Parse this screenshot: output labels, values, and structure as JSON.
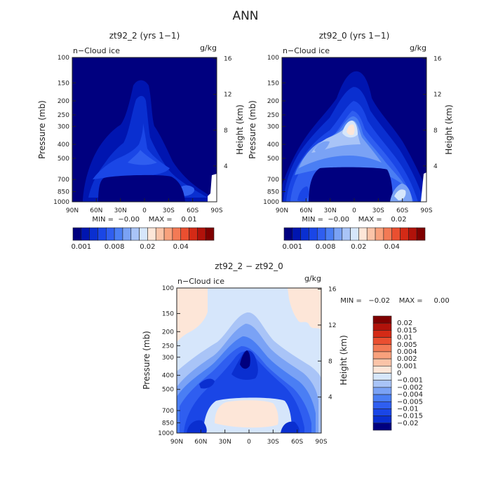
{
  "figure": {
    "title": "ANN"
  },
  "chart_data": [
    {
      "type": "heatmap",
      "title": "zt92_2 (yrs 1−1)",
      "field_label": "n−Cloud ice",
      "units": "g/kg",
      "ylabel_left": "Pressure (mb)",
      "ylabel_right": "Height (km)",
      "x_ticks": [
        "90N",
        "60N",
        "30N",
        "0",
        "30S",
        "60S",
        "90S"
      ],
      "y_ticks_pressure": [
        "100",
        "150",
        "200",
        "250",
        "300",
        "400",
        "500",
        "700",
        "850",
        "1000"
      ],
      "y_ticks_height": [
        "16",
        "12",
        "8",
        "4"
      ],
      "min_max_text": "MIN =  −0.00    MAX =    0.01",
      "colorbar": {
        "orientation": "horizontal",
        "labels": [
          "0.001",
          "0.008",
          "0.02",
          "0.04"
        ],
        "colors": [
          "#00007f",
          "#0015b0",
          "#0a2fd0",
          "#1a46e6",
          "#2f5ef0",
          "#4a7ef4",
          "#7aa2f5",
          "#a9c4f7",
          "#d6e6fb",
          "#fde6d8",
          "#fbc4a8",
          "#f8a17c",
          "#f37a55",
          "#ea4f30",
          "#d42a16",
          "#b1120a",
          "#7f0000"
        ]
      },
      "grid": false
    },
    {
      "type": "heatmap",
      "title": "zt92_0 (yrs 1−1)",
      "field_label": "n−Cloud ice",
      "units": "g/kg",
      "ylabel_left": "Pressure (mb)",
      "ylabel_right": "Height (km)",
      "x_ticks": [
        "90N",
        "60N",
        "30N",
        "0",
        "30S",
        "60S",
        "90S"
      ],
      "y_ticks_pressure": [
        "100",
        "150",
        "200",
        "250",
        "300",
        "400",
        "500",
        "700",
        "850",
        "1000"
      ],
      "y_ticks_height": [
        "16",
        "12",
        "8",
        "4"
      ],
      "min_max_text": "MIN =  −0.00    MAX =    0.02",
      "colorbar": {
        "orientation": "horizontal",
        "labels": [
          "0.001",
          "0.008",
          "0.02",
          "0.04"
        ],
        "colors": [
          "#00007f",
          "#0015b0",
          "#0a2fd0",
          "#1a46e6",
          "#2f5ef0",
          "#4a7ef4",
          "#7aa2f5",
          "#a9c4f7",
          "#d6e6fb",
          "#fde6d8",
          "#fbc4a8",
          "#f8a17c",
          "#f37a55",
          "#ea4f30",
          "#d42a16",
          "#b1120a",
          "#7f0000"
        ]
      },
      "grid": false
    },
    {
      "type": "heatmap",
      "title": "zt92_2 − zt92_0",
      "field_label": "n−Cloud ice",
      "units": "g/kg",
      "ylabel_left": "Pressure (mb)",
      "ylabel_right": "Height (km)",
      "x_ticks": [
        "90N",
        "60N",
        "30N",
        "0",
        "30S",
        "60S",
        "90S"
      ],
      "y_ticks_pressure": [
        "100",
        "150",
        "200",
        "250",
        "300",
        "400",
        "500",
        "700",
        "850",
        "1000"
      ],
      "y_ticks_height": [
        "16",
        "12",
        "8",
        "4"
      ],
      "min_max_text": "MIN =   −0.02    MAX =     0.00",
      "colorbar": {
        "orientation": "vertical",
        "labels": [
          "0.02",
          "0.015",
          "0.01",
          "0.005",
          "0.004",
          "0.002",
          "0.001",
          "0",
          "−0.001",
          "−0.002",
          "−0.004",
          "−0.005",
          "−0.01",
          "−0.015",
          "−0.02"
        ],
        "colors": [
          "#7f0000",
          "#b1120a",
          "#d42a16",
          "#ea4f30",
          "#f37a55",
          "#f8a17c",
          "#fbc4a8",
          "#fde6d8",
          "#d6e6fb",
          "#a9c4f7",
          "#7aa2f5",
          "#4a7ef4",
          "#2f5ef0",
          "#1a46e6",
          "#0a2fd0",
          "#00007f"
        ]
      },
      "grid": false
    }
  ]
}
